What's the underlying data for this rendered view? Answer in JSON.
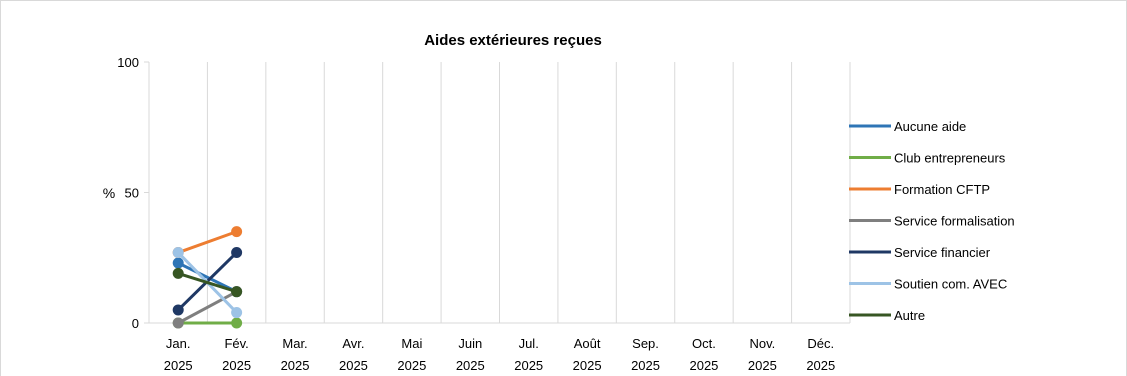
{
  "chart_data": {
    "type": "line",
    "title": "Aides extérieures reçues",
    "ylabel": "%",
    "ylim": [
      0,
      100
    ],
    "yticks": [
      0,
      50,
      100
    ],
    "grid": "vertical",
    "legend_position": "right",
    "categories": [
      [
        "Jan.",
        "2025"
      ],
      [
        "Fév.",
        "2025"
      ],
      [
        "Mar.",
        "2025"
      ],
      [
        "Avr.",
        "2025"
      ],
      [
        "Mai",
        "2025"
      ],
      [
        "Juin",
        "2025"
      ],
      [
        "Jul.",
        "2025"
      ],
      [
        "Août",
        "2025"
      ],
      [
        "Sep.",
        "2025"
      ],
      [
        "Oct.",
        "2025"
      ],
      [
        "Nov.",
        "2025"
      ],
      [
        "Déc.",
        "2025"
      ]
    ],
    "series": [
      {
        "name": "Aucune aide",
        "color": "#2e75b6",
        "values": [
          23,
          12,
          null,
          null,
          null,
          null,
          null,
          null,
          null,
          null,
          null,
          null
        ]
      },
      {
        "name": "Club entrepreneurs",
        "color": "#70ad47",
        "values": [
          0,
          0,
          null,
          null,
          null,
          null,
          null,
          null,
          null,
          null,
          null,
          null
        ]
      },
      {
        "name": "Formation CFTP",
        "color": "#ed7d31",
        "values": [
          27,
          35,
          null,
          null,
          null,
          null,
          null,
          null,
          null,
          null,
          null,
          null
        ]
      },
      {
        "name": "Service formalisation",
        "color": "#7f7f7f",
        "values": [
          0,
          12,
          null,
          null,
          null,
          null,
          null,
          null,
          null,
          null,
          null,
          null
        ]
      },
      {
        "name": "Service financier",
        "color": "#1f3864",
        "values": [
          5,
          27,
          null,
          null,
          null,
          null,
          null,
          null,
          null,
          null,
          null,
          null
        ]
      },
      {
        "name": "Soutien com. AVEC",
        "color": "#9dc3e6",
        "values": [
          27,
          4,
          null,
          null,
          null,
          null,
          null,
          null,
          null,
          null,
          null,
          null
        ]
      },
      {
        "name": "Autre",
        "color": "#375623",
        "values": [
          19,
          12,
          null,
          null,
          null,
          null,
          null,
          null,
          null,
          null,
          null,
          null
        ]
      }
    ]
  }
}
